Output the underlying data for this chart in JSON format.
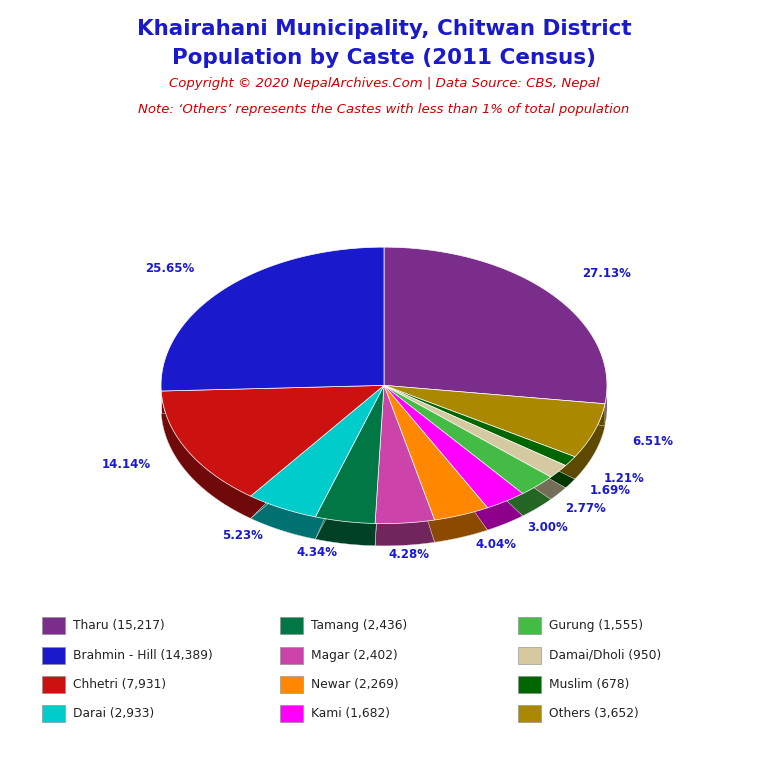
{
  "title_line1": "Khairahani Municipality, Chitwan District",
  "title_line2": "Population by Caste (2011 Census)",
  "title_color": "#1a1acc",
  "copyright_text": "Copyright © 2020 NepalArchives.Com | Data Source: CBS, Nepal",
  "copyright_color": "#cc0000",
  "note_text": "Note: ‘Others’ represents the Castes with less than 1% of total population",
  "note_color": "#cc0000",
  "slices": [
    {
      "label": "Tharu (15,217)",
      "value": 15217,
      "color": "#7b2d8b",
      "pct": "27.13%"
    },
    {
      "label": "Others (3,652)",
      "value": 3652,
      "color": "#aa8800",
      "pct": "6.51%"
    },
    {
      "label": "Muslim (678)",
      "value": 678,
      "color": "#006600",
      "pct": "1.21%"
    },
    {
      "label": "Damai/Dholi (950)",
      "value": 950,
      "color": "#d4c9a0",
      "pct": "1.69%"
    },
    {
      "label": "Gurung (1,555)",
      "value": 1555,
      "color": "#44bb44",
      "pct": "2.77%"
    },
    {
      "label": "Kami (1,682)",
      "value": 1682,
      "color": "#ff00ff",
      "pct": "3.00%"
    },
    {
      "label": "Newar (2,269)",
      "value": 2269,
      "color": "#ff8800",
      "pct": "4.04%"
    },
    {
      "label": "Magar (2,402)",
      "value": 2402,
      "color": "#cc44aa",
      "pct": "4.28%"
    },
    {
      "label": "Tamang (2,436)",
      "value": 2436,
      "color": "#007744",
      "pct": "4.34%"
    },
    {
      "label": "Darai (2,933)",
      "value": 2933,
      "color": "#00cccc",
      "pct": "5.23%"
    },
    {
      "label": "Chhetri (7,931)",
      "value": 7931,
      "color": "#cc1111",
      "pct": "14.14%"
    },
    {
      "label": "Brahmin - Hill (14,389)",
      "value": 14389,
      "color": "#1a1acc",
      "pct": "25.65%"
    }
  ],
  "legend_entries": [
    {
      "label": "Tharu (15,217)",
      "color": "#7b2d8b"
    },
    {
      "label": "Brahmin - Hill (14,389)",
      "color": "#1a1acc"
    },
    {
      "label": "Chhetri (7,931)",
      "color": "#cc1111"
    },
    {
      "label": "Darai (2,933)",
      "color": "#00cccc"
    },
    {
      "label": "Tamang (2,436)",
      "color": "#007744"
    },
    {
      "label": "Magar (2,402)",
      "color": "#cc44aa"
    },
    {
      "label": "Newar (2,269)",
      "color": "#ff8800"
    },
    {
      "label": "Kami (1,682)",
      "color": "#ff00ff"
    },
    {
      "label": "Gurung (1,555)",
      "color": "#44bb44"
    },
    {
      "label": "Damai/Dholi (950)",
      "color": "#d4c9a0"
    },
    {
      "label": "Muslim (678)",
      "color": "#006600"
    },
    {
      "label": "Others (3,652)",
      "color": "#aa8800"
    }
  ],
  "background_color": "#ffffff"
}
